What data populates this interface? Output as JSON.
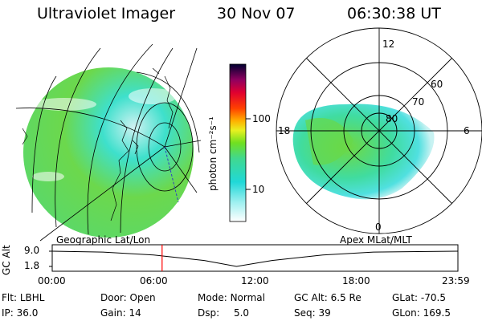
{
  "header": {
    "instrument": "Ultraviolet Imager",
    "date": "30 Nov 07",
    "time": "06:30:38 UT"
  },
  "colorbar": {
    "unit_label": "photon cm⁻²s⁻¹",
    "ticks": [
      "100",
      "10"
    ]
  },
  "geo_map": {
    "label": "Geographic Lat/Lon"
  },
  "polar_plot": {
    "label": "Apex MLat/MLT",
    "mlt_labels": {
      "top": "12",
      "left": "18",
      "right": "6",
      "bottom": "0"
    },
    "lat_labels": [
      "60",
      "70",
      "80"
    ]
  },
  "timeline": {
    "ylabel": "GC Alt",
    "y_ticks": [
      "9.0",
      "1.8"
    ],
    "x_ticks": [
      "00:00",
      "06:00",
      "12:00",
      "18:00",
      "23:59"
    ],
    "current_time": "06:30",
    "altitude_curve": [
      {
        "t": 0,
        "alt": 9.0
      },
      {
        "t": 3,
        "alt": 8.6
      },
      {
        "t": 6,
        "alt": 7.2
      },
      {
        "t": 9,
        "alt": 4.6
      },
      {
        "t": 10.9,
        "alt": 1.8
      },
      {
        "t": 13,
        "alt": 4.6
      },
      {
        "t": 16,
        "alt": 7.2
      },
      {
        "t": 19,
        "alt": 8.6
      },
      {
        "t": 23.98,
        "alt": 9.0
      }
    ],
    "colors": {
      "curve": "#000000",
      "marker": "#ff0000"
    }
  },
  "footer": {
    "flt_label": "Flt:",
    "flt_value": "LBHL",
    "ip_label": "IP:",
    "ip_value": "36.0",
    "door_label": "Door:",
    "door_value": "Open",
    "gain_label": "Gain:",
    "gain_value": "14",
    "mode_label": "Mode:",
    "mode_value": "Normal",
    "dsp_label": "Dsp:",
    "dsp_value": "5.0",
    "gcalt_label": "GC Alt:",
    "gcalt_value": "6.5 Re",
    "seq_label": "Seq:",
    "seq_value": "39",
    "glat_label": "GLat:",
    "glat_value": "-70.5",
    "glon_label": "GLon:",
    "glon_value": "169.5"
  }
}
